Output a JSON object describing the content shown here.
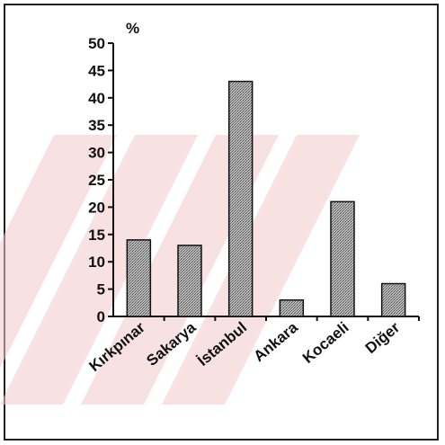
{
  "chart_data": {
    "type": "bar",
    "categories": [
      "Kırkpınar",
      "Sakarya",
      "İstanbul",
      "Ankara",
      "Kocaeli",
      "Diğer"
    ],
    "values": [
      14,
      13,
      43,
      3,
      21,
      6
    ],
    "title": "",
    "xlabel": "",
    "ylabel": "%",
    "ylim": [
      0,
      50
    ],
    "yticks": [
      0,
      5,
      10,
      15,
      20,
      25,
      30,
      35,
      40,
      45,
      50
    ],
    "grid": false,
    "legend": "none"
  },
  "colors": {
    "bar_fill": "#9a9a9a",
    "bar_stroke": "#111111",
    "axis": "#111111",
    "watermark": "#f3c9cc"
  }
}
